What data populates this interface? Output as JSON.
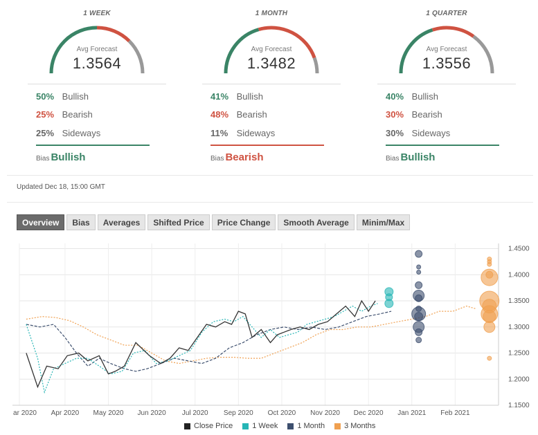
{
  "panels": [
    {
      "title": "1 WEEK",
      "label": "Avg Forecast",
      "value": "1.3564",
      "bullish": "50%",
      "bearish": "25%",
      "sideways": "25%",
      "bias_prefix": "Bias",
      "bias": "Bullish",
      "bias_color": "#3a8466",
      "arc": [
        0.5,
        0.25,
        0.25
      ]
    },
    {
      "title": "1 MONTH",
      "label": "Avg Forecast",
      "value": "1.3482",
      "bullish": "41%",
      "bearish": "48%",
      "sideways": "11%",
      "bias_prefix": "Bias",
      "bias": "Bearish",
      "bias_color": "#cf5241",
      "arc": [
        0.41,
        0.48,
        0.11
      ]
    },
    {
      "title": "1 QUARTER",
      "label": "Avg Forecast",
      "value": "1.3556",
      "bullish": "40%",
      "bearish": "30%",
      "sideways": "30%",
      "bias_prefix": "Bias",
      "bias": "Bullish",
      "bias_color": "#3a8466",
      "arc": [
        0.4,
        0.3,
        0.3
      ]
    }
  ],
  "labels": {
    "bullish": "Bullish",
    "bearish": "Bearish",
    "sideways": "Sideways"
  },
  "colors": {
    "bullish": "#3a8466",
    "bearish": "#cf5241",
    "sideways": "#999999",
    "close": "#333333",
    "week": "#26b5b5",
    "month": "#3d4f6e",
    "quarter": "#f0a050"
  },
  "updated": "Updated Dec 18, 15:00 GMT",
  "tabs": [
    "Overview",
    "Bias",
    "Averages",
    "Shifted Price",
    "Price Change",
    "Smooth Average",
    "Minim/Max"
  ],
  "active_tab": 0,
  "chart_data": {
    "type": "line",
    "x_ticks": [
      "ar 2020",
      "Apr 2020",
      "May 2020",
      "Jun 2020",
      "Jul 2020",
      "Sep 2020",
      "Oct 2020",
      "Nov 2020",
      "Dec 2020",
      "Jan 2021",
      "Feb 2021"
    ],
    "x_tick_pos": [
      0.0,
      1.0,
      1.95,
      2.9,
      3.85,
      4.8,
      5.75,
      6.7,
      7.65,
      8.6,
      9.55
    ],
    "y_ticks": [
      "1.4500",
      "1.4000",
      "1.3500",
      "1.3000",
      "1.2500",
      "1.2000",
      "1.1500"
    ],
    "ylim": [
      1.15,
      1.46
    ],
    "xlim": [
      0.0,
      10.5
    ],
    "legend": [
      "Close Price",
      "1 Week",
      "1 Month",
      "3 Months"
    ],
    "series": [
      {
        "name": "Close Price",
        "style": "solid",
        "points": [
          [
            0.15,
            1.25
          ],
          [
            0.4,
            1.185
          ],
          [
            0.6,
            1.225
          ],
          [
            0.85,
            1.22
          ],
          [
            1.05,
            1.245
          ],
          [
            1.3,
            1.25
          ],
          [
            1.5,
            1.235
          ],
          [
            1.75,
            1.245
          ],
          [
            1.95,
            1.21
          ],
          [
            2.1,
            1.215
          ],
          [
            2.3,
            1.225
          ],
          [
            2.55,
            1.27
          ],
          [
            2.85,
            1.245
          ],
          [
            3.1,
            1.23
          ],
          [
            3.3,
            1.24
          ],
          [
            3.5,
            1.26
          ],
          [
            3.7,
            1.255
          ],
          [
            3.9,
            1.28
          ],
          [
            4.1,
            1.305
          ],
          [
            4.3,
            1.3
          ],
          [
            4.5,
            1.31
          ],
          [
            4.65,
            1.305
          ],
          [
            4.8,
            1.33
          ],
          [
            4.95,
            1.325
          ],
          [
            5.1,
            1.28
          ],
          [
            5.3,
            1.295
          ],
          [
            5.5,
            1.27
          ],
          [
            5.65,
            1.285
          ],
          [
            5.8,
            1.29
          ],
          [
            5.95,
            1.295
          ],
          [
            6.15,
            1.3
          ],
          [
            6.35,
            1.295
          ],
          [
            6.55,
            1.305
          ],
          [
            6.75,
            1.31
          ],
          [
            6.95,
            1.325
          ],
          [
            7.15,
            1.34
          ],
          [
            7.35,
            1.32
          ],
          [
            7.5,
            1.35
          ],
          [
            7.65,
            1.33
          ],
          [
            7.8,
            1.35
          ]
        ]
      },
      {
        "name": "1 Week",
        "style": "dotted",
        "points": [
          [
            0.15,
            1.305
          ],
          [
            0.4,
            1.24
          ],
          [
            0.55,
            1.175
          ],
          [
            0.75,
            1.22
          ],
          [
            1.0,
            1.23
          ],
          [
            1.25,
            1.24
          ],
          [
            1.5,
            1.24
          ],
          [
            1.75,
            1.225
          ],
          [
            2.0,
            1.21
          ],
          [
            2.25,
            1.215
          ],
          [
            2.5,
            1.25
          ],
          [
            2.75,
            1.255
          ],
          [
            3.0,
            1.23
          ],
          [
            3.25,
            1.235
          ],
          [
            3.5,
            1.245
          ],
          [
            3.75,
            1.255
          ],
          [
            4.0,
            1.29
          ],
          [
            4.25,
            1.31
          ],
          [
            4.5,
            1.315
          ],
          [
            4.7,
            1.31
          ],
          [
            4.9,
            1.32
          ],
          [
            5.1,
            1.3
          ],
          [
            5.3,
            1.28
          ],
          [
            5.5,
            1.295
          ],
          [
            5.7,
            1.28
          ],
          [
            5.9,
            1.285
          ],
          [
            6.1,
            1.29
          ],
          [
            6.3,
            1.305
          ],
          [
            6.5,
            1.31
          ],
          [
            6.7,
            1.315
          ],
          [
            6.9,
            1.32
          ],
          [
            7.1,
            1.33
          ],
          [
            7.3,
            1.34
          ],
          [
            7.5,
            1.33
          ],
          [
            7.7,
            1.34
          ],
          [
            7.85,
            1.345
          ]
        ]
      },
      {
        "name": "1 Month",
        "style": "dashed",
        "points": [
          [
            0.15,
            1.305
          ],
          [
            0.45,
            1.3
          ],
          [
            0.75,
            1.305
          ],
          [
            1.0,
            1.28
          ],
          [
            1.25,
            1.25
          ],
          [
            1.5,
            1.225
          ],
          [
            1.75,
            1.24
          ],
          [
            2.0,
            1.23
          ],
          [
            2.3,
            1.22
          ],
          [
            2.55,
            1.215
          ],
          [
            2.8,
            1.22
          ],
          [
            3.1,
            1.23
          ],
          [
            3.4,
            1.24
          ],
          [
            3.7,
            1.235
          ],
          [
            4.0,
            1.23
          ],
          [
            4.3,
            1.24
          ],
          [
            4.6,
            1.26
          ],
          [
            4.9,
            1.27
          ],
          [
            5.2,
            1.285
          ],
          [
            5.5,
            1.295
          ],
          [
            5.8,
            1.3
          ],
          [
            6.1,
            1.295
          ],
          [
            6.4,
            1.3
          ],
          [
            6.7,
            1.295
          ],
          [
            7.0,
            1.3
          ],
          [
            7.3,
            1.31
          ],
          [
            7.6,
            1.32
          ],
          [
            7.9,
            1.325
          ],
          [
            8.15,
            1.33
          ]
        ]
      },
      {
        "name": "3 Months",
        "style": "dotted",
        "points": [
          [
            0.15,
            1.315
          ],
          [
            0.5,
            1.32
          ],
          [
            0.8,
            1.318
          ],
          [
            1.1,
            1.312
          ],
          [
            1.4,
            1.3
          ],
          [
            1.7,
            1.285
          ],
          [
            2.0,
            1.275
          ],
          [
            2.3,
            1.265
          ],
          [
            2.6,
            1.265
          ],
          [
            2.9,
            1.25
          ],
          [
            3.2,
            1.235
          ],
          [
            3.5,
            1.23
          ],
          [
            3.8,
            1.235
          ],
          [
            4.1,
            1.24
          ],
          [
            4.4,
            1.242
          ],
          [
            4.7,
            1.242
          ],
          [
            5.0,
            1.24
          ],
          [
            5.3,
            1.24
          ],
          [
            5.6,
            1.25
          ],
          [
            5.9,
            1.26
          ],
          [
            6.2,
            1.27
          ],
          [
            6.5,
            1.285
          ],
          [
            6.8,
            1.295
          ],
          [
            7.1,
            1.295
          ],
          [
            7.4,
            1.3
          ],
          [
            7.7,
            1.3
          ],
          [
            8.0,
            1.305
          ],
          [
            8.3,
            1.31
          ],
          [
            8.6,
            1.315
          ],
          [
            8.9,
            1.32
          ],
          [
            9.2,
            1.33
          ],
          [
            9.5,
            1.33
          ],
          [
            9.8,
            1.34
          ],
          [
            10.0,
            1.335
          ]
        ]
      }
    ],
    "bubbles": [
      {
        "series": "1 Week",
        "x": 8.1,
        "ys": [
          1.3675,
          1.357,
          1.345
        ],
        "rs": [
          6,
          5,
          6
        ]
      },
      {
        "series": "1 Month",
        "x": 8.75,
        "ys": [
          1.44,
          1.405,
          1.38,
          1.36,
          1.355,
          1.32,
          1.325,
          1.3,
          1.275,
          1.415,
          1.29,
          1.335
        ],
        "rs": [
          5,
          3,
          5,
          8,
          5,
          6,
          10,
          8,
          4,
          3,
          5,
          4
        ]
      },
      {
        "series": "3 Months",
        "x": 10.3,
        "ys": [
          1.43,
          1.42,
          1.4,
          1.395,
          1.35,
          1.34,
          1.325,
          1.32,
          1.3,
          1.24,
          1.425
        ],
        "rs": [
          3,
          3,
          5,
          12,
          14,
          10,
          12,
          9,
          8,
          3,
          3
        ]
      }
    ]
  }
}
